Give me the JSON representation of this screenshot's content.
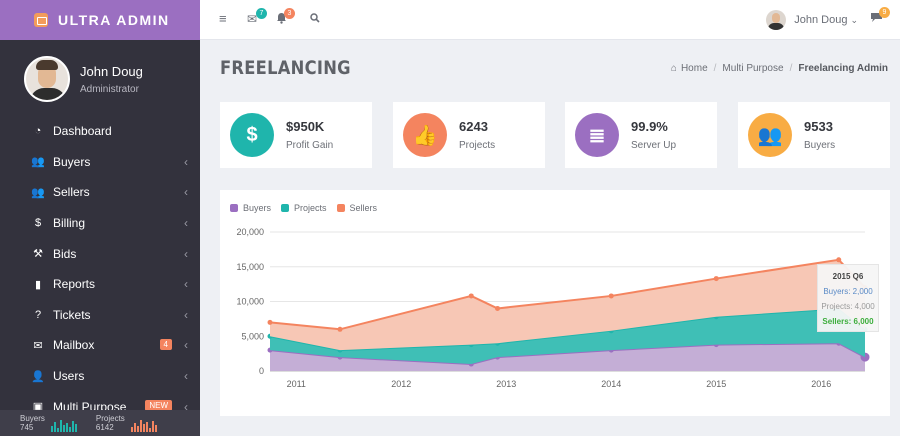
{
  "brand": {
    "title": "ULTRA ADMIN"
  },
  "profile": {
    "name": "John Doug",
    "role": "Administrator"
  },
  "sidebar": {
    "items": [
      {
        "label": "Dashboard",
        "icon": "dashboard-icon",
        "glyph": "◔",
        "chevron": false
      },
      {
        "label": "Buyers",
        "icon": "users-icon",
        "glyph": "👥",
        "chevron": true
      },
      {
        "label": "Sellers",
        "icon": "users-icon",
        "glyph": "👥",
        "chevron": true
      },
      {
        "label": "Billing",
        "icon": "dollar-icon",
        "glyph": "$",
        "chevron": true
      },
      {
        "label": "Bids",
        "icon": "gavel-icon",
        "glyph": "⚒",
        "chevron": true
      },
      {
        "label": "Reports",
        "icon": "bar-chart-icon",
        "glyph": "▮",
        "chevron": true
      },
      {
        "label": "Tickets",
        "icon": "question-icon",
        "glyph": "?",
        "chevron": true
      },
      {
        "label": "Mailbox",
        "icon": "envelope-icon",
        "glyph": "✉",
        "chevron": true,
        "badge": "4"
      },
      {
        "label": "Users",
        "icon": "user-icon",
        "glyph": "👤",
        "chevron": true
      },
      {
        "label": "Multi Purpose",
        "icon": "briefcase-icon",
        "glyph": "▣",
        "chevron": true,
        "badge": "NEW"
      }
    ],
    "footer": {
      "buyers_label": "Buyers",
      "buyers_value": "745",
      "projects_label": "Projects",
      "projects_value": "6142",
      "buyers_spark": [
        6,
        10,
        4,
        12,
        7,
        9,
        5,
        11,
        8
      ],
      "projects_spark": [
        5,
        9,
        6,
        12,
        8,
        10,
        4,
        11,
        7
      ]
    }
  },
  "topbar": {
    "menu_icon": "menu-icon",
    "mail_badge": "7",
    "bell_badge": "3",
    "search_icon": "search-icon",
    "user_name": "John Doug",
    "chat_badge": "9"
  },
  "page": {
    "title": "FREELANCING",
    "breadcrumb": {
      "home": "Home",
      "middle": "Multi Purpose",
      "current": "Freelancing Admin"
    }
  },
  "stats": [
    {
      "value": "$950K",
      "label": "Profit Gain",
      "color": "#1fb5ac",
      "icon": "dollar-icon",
      "glyph": "$"
    },
    {
      "value": "6243",
      "label": "Projects",
      "color": "#f4845f",
      "icon": "thumbs-up-icon",
      "glyph": "👍"
    },
    {
      "value": "99.9%",
      "label": "Server Up",
      "color": "#9b6fc1",
      "icon": "database-icon",
      "glyph": "≣"
    },
    {
      "value": "9533",
      "label": "Buyers",
      "color": "#f8ac44",
      "icon": "users-icon",
      "glyph": "👥"
    }
  ],
  "colors": {
    "buyers": "#9b6fc1",
    "projects": "#1fb5ac",
    "sellers": "#f4845f",
    "sidebar": "#33323d",
    "brand": "#9b6fc1"
  },
  "chart_data": {
    "type": "area",
    "stacked": true,
    "x": [
      "2010-10",
      "2011-06",
      "2012-09",
      "2012-12",
      "2014-01",
      "2015-01",
      "2016-03",
      "2016-06"
    ],
    "x_ticks": [
      "2011",
      "2012",
      "2013",
      "2014",
      "2015",
      "2016"
    ],
    "y_ticks": [
      "0",
      "5,000",
      "10,000",
      "15,000",
      "20,000"
    ],
    "ylim": [
      0,
      20000
    ],
    "series": [
      {
        "name": "Buyers",
        "values": [
          3000,
          2000,
          1000,
          2000,
          3000,
          3800,
          4000,
          2000
        ]
      },
      {
        "name": "Projects",
        "values": [
          2000,
          1000,
          2800,
          2000,
          2800,
          4000,
          5000,
          4000
        ]
      },
      {
        "name": "Sellers",
        "values": [
          2000,
          3000,
          7000,
          5000,
          5000,
          5500,
          7000,
          6000
        ]
      }
    ],
    "legend": "top-left",
    "grid": true,
    "tooltip": {
      "title": "2015 Q6",
      "buyers": "Buyers: 2,000",
      "projects": "Projects: 4,000",
      "sellers": "Sellers: 6,000"
    }
  }
}
